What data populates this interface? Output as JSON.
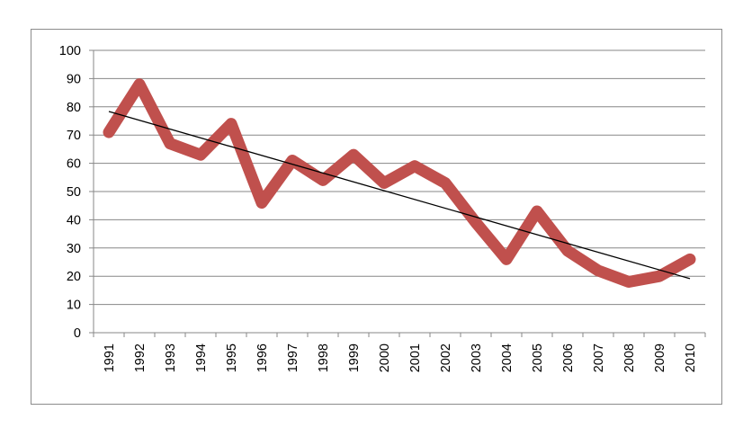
{
  "chart_data": {
    "type": "line",
    "title": "",
    "xlabel": "",
    "ylabel": "",
    "categories": [
      "1991",
      "1992",
      "1993",
      "1994",
      "1995",
      "1996",
      "1997",
      "1998",
      "1999",
      "2000",
      "2001",
      "2002",
      "2003",
      "2004",
      "2005",
      "2006",
      "2007",
      "2008",
      "2009",
      "2010"
    ],
    "series": [
      {
        "values": [
          71,
          88,
          67,
          63,
          74,
          46,
          61,
          54,
          63,
          53,
          59,
          53,
          39,
          26,
          43,
          29,
          22,
          18,
          20,
          26
        ],
        "color": "#c0504d"
      }
    ],
    "trendline": {
      "type": "linear",
      "color": "#000000"
    },
    "ylim": [
      0,
      100
    ],
    "yticks": [
      0,
      10,
      20,
      30,
      40,
      50,
      60,
      70,
      80,
      90,
      100
    ],
    "grid": {
      "horizontal": true,
      "vertical": false,
      "color": "#878787"
    },
    "legend": "none"
  }
}
